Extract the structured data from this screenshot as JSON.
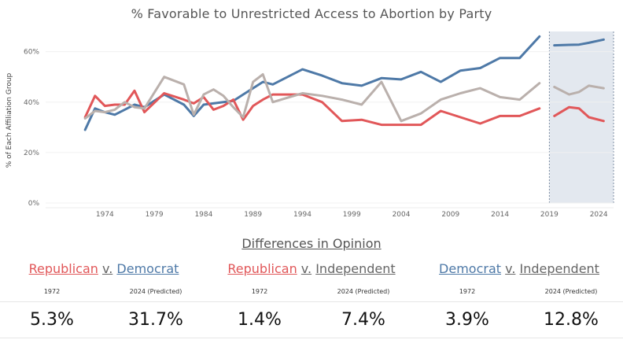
{
  "title": "% Favorable to Unrestricted Access to Abortion by Party",
  "chart_data": {
    "type": "line",
    "ylabel": "% of Each Affiliation Group",
    "xlim": [
      1968,
      2025.5
    ],
    "ylim": [
      0,
      68
    ],
    "y_ticks": [
      0,
      20,
      40,
      60
    ],
    "y_tick_labels": [
      "0%",
      "20%",
      "40%",
      "60%"
    ],
    "x_ticks": [
      1974,
      1979,
      1984,
      1989,
      1994,
      1999,
      2004,
      2009,
      2014,
      2019,
      2024
    ],
    "x_tick_labels": [
      "1974",
      "1979",
      "1984",
      "1989",
      "1994",
      "1999",
      "2004",
      "2009",
      "2014",
      "2019",
      "2024"
    ],
    "prediction_range": [
      2019,
      2025.5
    ],
    "series": [
      {
        "color": "#4e79a7",
        "points": [
          [
            1972,
            29
          ],
          [
            1973,
            37.5
          ],
          [
            1974,
            36
          ],
          [
            1975,
            35
          ],
          [
            1976,
            37
          ],
          [
            1977,
            39
          ],
          [
            1978,
            38
          ],
          [
            1980,
            43
          ],
          [
            1982,
            39
          ],
          [
            1983,
            34.5
          ],
          [
            1984,
            39
          ],
          [
            1985,
            39.5
          ],
          [
            1986,
            40
          ],
          [
            1987,
            40.5
          ],
          [
            1988,
            43
          ],
          [
            1989,
            45.5
          ],
          [
            1990,
            48
          ],
          [
            1991,
            47
          ],
          [
            1994,
            53
          ],
          [
            1996,
            50.5
          ],
          [
            1998,
            47.5
          ],
          [
            2000,
            46.5
          ],
          [
            2002,
            49.5
          ],
          [
            2004,
            49
          ],
          [
            2006,
            52
          ],
          [
            2008,
            48
          ],
          [
            2010,
            52.5
          ],
          [
            2012,
            53.5
          ],
          [
            2014,
            57.5
          ],
          [
            2016,
            57.5
          ],
          [
            2018,
            66
          ]
        ],
        "predicted": [
          [
            2019.5,
            62.5
          ],
          [
            2021,
            62.7
          ],
          [
            2022,
            62.8
          ],
          [
            2023,
            63.5
          ],
          [
            2024.5,
            64.8
          ]
        ]
      },
      {
        "color": "#e15759",
        "points": [
          [
            1972,
            34
          ],
          [
            1973,
            42.5
          ],
          [
            1974,
            38.5
          ],
          [
            1975,
            39
          ],
          [
            1976,
            39
          ],
          [
            1977,
            44.5
          ],
          [
            1978,
            36
          ],
          [
            1980,
            43.5
          ],
          [
            1982,
            41
          ],
          [
            1983,
            39.5
          ],
          [
            1984,
            42
          ],
          [
            1985,
            37
          ],
          [
            1986,
            38.5
          ],
          [
            1987,
            41
          ],
          [
            1988,
            33
          ],
          [
            1989,
            38.5
          ],
          [
            1990,
            41
          ],
          [
            1991,
            43
          ],
          [
            1994,
            43
          ],
          [
            1996,
            40
          ],
          [
            1998,
            32.5
          ],
          [
            2000,
            33
          ],
          [
            2002,
            31
          ],
          [
            2004,
            31
          ],
          [
            2006,
            31
          ],
          [
            2008,
            36.5
          ],
          [
            2010,
            34
          ],
          [
            2012,
            31.5
          ],
          [
            2014,
            34.5
          ],
          [
            2016,
            34.5
          ],
          [
            2018,
            37.5
          ]
        ],
        "predicted": [
          [
            2019.5,
            34.5
          ],
          [
            2021,
            38
          ],
          [
            2022,
            37.5
          ],
          [
            2023,
            34
          ],
          [
            2024.5,
            32.5
          ]
        ]
      },
      {
        "color": "#bab0ac",
        "points": [
          [
            1972,
            33.5
          ],
          [
            1973,
            36.5
          ],
          [
            1974,
            36
          ],
          [
            1975,
            37
          ],
          [
            1976,
            40
          ],
          [
            1977,
            38
          ],
          [
            1978,
            37.5
          ],
          [
            1980,
            50
          ],
          [
            1982,
            47
          ],
          [
            1983,
            35
          ],
          [
            1984,
            43
          ],
          [
            1985,
            45
          ],
          [
            1986,
            42.5
          ],
          [
            1987,
            38
          ],
          [
            1988,
            34
          ],
          [
            1989,
            48
          ],
          [
            1990,
            51
          ],
          [
            1991,
            40
          ],
          [
            1994,
            43.5
          ],
          [
            1996,
            42.5
          ],
          [
            1998,
            41
          ],
          [
            2000,
            39
          ],
          [
            2002,
            48
          ],
          [
            2004,
            32.5
          ],
          [
            2006,
            35.5
          ],
          [
            2008,
            41
          ],
          [
            2010,
            43.5
          ],
          [
            2012,
            45.5
          ],
          [
            2014,
            42
          ],
          [
            2016,
            41
          ],
          [
            2018,
            47.5
          ]
        ],
        "predicted": [
          [
            2019.5,
            46
          ],
          [
            2021,
            43
          ],
          [
            2022,
            44
          ],
          [
            2023,
            46.5
          ],
          [
            2024.5,
            45.5
          ]
        ]
      }
    ]
  },
  "differences": {
    "title": "Differences in Opinion",
    "pairs": [
      {
        "a": "Republican",
        "v": "v.",
        "b": "Democrat",
        "year1": "1972",
        "year2": "2024 (Predicted)",
        "value1": "5.3%",
        "value2": "31.7%",
        "a_color": "#e15759",
        "b_color": "#4e79a7"
      },
      {
        "a": "Republican",
        "v": "v.",
        "b": "Independent",
        "year1": "1972",
        "year2": "2024 (Predicted)",
        "value1": "1.4%",
        "value2": "7.4%",
        "a_color": "#e15759",
        "b_color": "#666666"
      },
      {
        "a": "Democrat",
        "v": "v.",
        "b": "Independent",
        "year1": "1972",
        "year2": "2024 (Predicted)",
        "value1": "3.9%",
        "value2": "12.8%",
        "a_color": "#4e79a7",
        "b_color": "#666666"
      }
    ]
  }
}
